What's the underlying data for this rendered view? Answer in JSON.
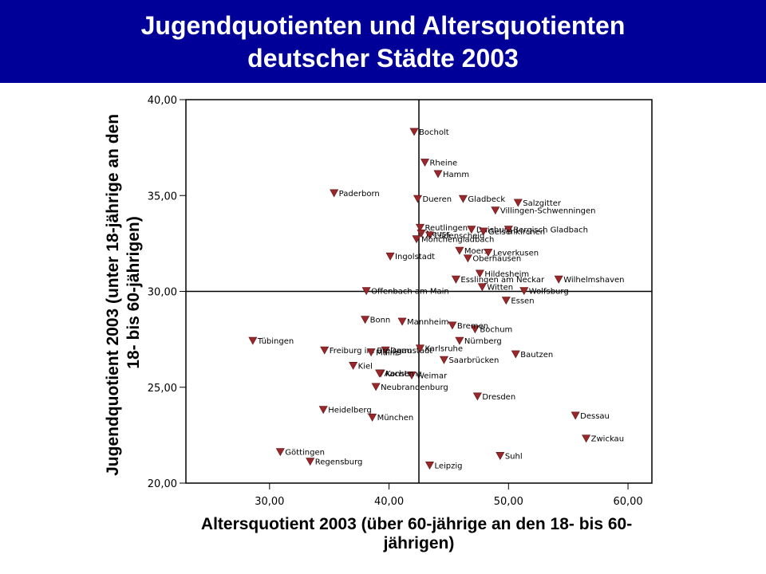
{
  "header": {
    "title_line1": "Jugendquotienten und Altersquotienten",
    "title_line2": "deutscher Städte 2003"
  },
  "colors": {
    "banner": "#000099",
    "marker": "#99282B",
    "axis": "#000000"
  },
  "chart_data": {
    "type": "scatter",
    "xlabel_lines": [
      "Altersquotient 2003 (über 60-jährige an den 18- bis 60-",
      "jährigen)"
    ],
    "ylabel_lines": [
      "Jugendquotient 2003 (unter 18-jährige an den",
      "18- bis 60-jährigen)"
    ],
    "xlim": [
      23.0,
      62.0
    ],
    "ylim": [
      20.0,
      40.0
    ],
    "xticks": [
      30,
      40,
      50,
      60
    ],
    "yticks": [
      20,
      25,
      30,
      35,
      40
    ],
    "x_tick_labels": [
      "30,00",
      "40,00",
      "50,00",
      "60,00"
    ],
    "y_tick_labels": [
      "20,00",
      "25,00",
      "30,00",
      "35,00",
      "40,00"
    ],
    "reference_lines": {
      "x": 42.5,
      "y": 30.0
    },
    "marker": "triangle-down",
    "points": [
      {
        "name": "Bocholt",
        "x": 42.1,
        "y": 38.3
      },
      {
        "name": "Rheine",
        "x": 43.0,
        "y": 36.7
      },
      {
        "name": "Hamm",
        "x": 44.1,
        "y": 36.1
      },
      {
        "name": "Paderborn",
        "x": 35.4,
        "y": 35.1
      },
      {
        "name": "Dueren",
        "x": 42.4,
        "y": 34.8
      },
      {
        "name": "Gladbeck",
        "x": 46.2,
        "y": 34.8
      },
      {
        "name": "Salzgitter",
        "x": 50.8,
        "y": 34.6
      },
      {
        "name": "Villingen-Schwenningen",
        "x": 48.9,
        "y": 34.2
      },
      {
        "name": "Reutlingen",
        "x": 42.6,
        "y": 33.3
      },
      {
        "name": "Duisburg",
        "x": 46.9,
        "y": 33.2
      },
      {
        "name": "Neuss",
        "x": 42.7,
        "y": 33.0
      },
      {
        "name": "Lüdenscheid",
        "x": 43.4,
        "y": 32.9
      },
      {
        "name": "Bergisch Gladbach",
        "x": 50.0,
        "y": 33.2
      },
      {
        "name": "Gelsenkirchen",
        "x": 47.9,
        "y": 33.1
      },
      {
        "name": "Mönchengladbach",
        "x": 42.3,
        "y": 32.7
      },
      {
        "name": "Ingolstadt",
        "x": 40.1,
        "y": 31.8
      },
      {
        "name": "Moers",
        "x": 45.9,
        "y": 32.1
      },
      {
        "name": "Leverkusen",
        "x": 48.3,
        "y": 32.0
      },
      {
        "name": "Oberhausen",
        "x": 46.6,
        "y": 31.7
      },
      {
        "name": "Hildesheim",
        "x": 47.6,
        "y": 30.9
      },
      {
        "name": "Esslingen am Neckar",
        "x": 45.6,
        "y": 30.6
      },
      {
        "name": "Witten",
        "x": 47.8,
        "y": 30.2
      },
      {
        "name": "Wolfsburg",
        "x": 51.3,
        "y": 30.0
      },
      {
        "name": "Wilhelmshaven",
        "x": 54.2,
        "y": 30.6
      },
      {
        "name": "Offenbach am Main",
        "x": 38.1,
        "y": 30.0
      },
      {
        "name": "Essen",
        "x": 49.8,
        "y": 29.5
      },
      {
        "name": "Bonn",
        "x": 38.0,
        "y": 28.5
      },
      {
        "name": "Mannheim",
        "x": 41.1,
        "y": 28.4
      },
      {
        "name": "Bochum",
        "x": 47.2,
        "y": 28.0
      },
      {
        "name": "Bremen",
        "x": 45.3,
        "y": 28.2
      },
      {
        "name": "Nürnberg",
        "x": 45.9,
        "y": 27.4
      },
      {
        "name": "Tübingen",
        "x": 28.6,
        "y": 27.4
      },
      {
        "name": "Darmstadt",
        "x": 39.7,
        "y": 26.9
      },
      {
        "name": "Karlsruhe",
        "x": 42.6,
        "y": 27.0
      },
      {
        "name": "Bautzen",
        "x": 50.6,
        "y": 26.7
      },
      {
        "name": "Freiburg im Breisgau",
        "x": 34.6,
        "y": 26.9
      },
      {
        "name": "Saarbrücken",
        "x": 44.6,
        "y": 26.4
      },
      {
        "name": "Mainz",
        "x": 38.5,
        "y": 26.8
      },
      {
        "name": "Kiel",
        "x": 37.0,
        "y": 26.1
      },
      {
        "name": "Konstanz",
        "x": 39.3,
        "y": 25.7
      },
      {
        "name": "Weimar",
        "x": 41.9,
        "y": 25.6
      },
      {
        "name": "Aachen",
        "x": 39.2,
        "y": 25.7
      },
      {
        "name": "Neubrandenburg",
        "x": 38.9,
        "y": 25.0
      },
      {
        "name": "Dresden",
        "x": 47.4,
        "y": 24.5
      },
      {
        "name": "Heidelberg",
        "x": 34.5,
        "y": 23.8
      },
      {
        "name": "München",
        "x": 38.6,
        "y": 23.4
      },
      {
        "name": "Dessau",
        "x": 55.6,
        "y": 23.5
      },
      {
        "name": "Zwickau",
        "x": 56.5,
        "y": 22.3
      },
      {
        "name": "Göttingen",
        "x": 30.9,
        "y": 21.6
      },
      {
        "name": "Suhl",
        "x": 49.3,
        "y": 21.4
      },
      {
        "name": "Regensburg",
        "x": 33.4,
        "y": 21.1
      },
      {
        "name": "Leipzig",
        "x": 43.4,
        "y": 20.9
      }
    ]
  }
}
